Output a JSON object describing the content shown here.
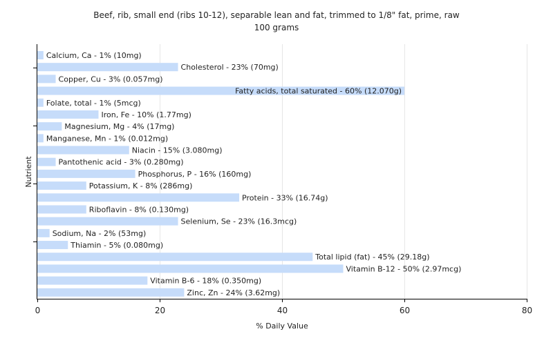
{
  "chart_data": {
    "type": "bar",
    "orientation": "horizontal",
    "title": "Beef, rib, small end (ribs 10-12), separable lean and fat, trimmed to 1/8\" fat, prime, raw",
    "subtitle": "100 grams",
    "xlabel": "% Daily Value",
    "ylabel": "Nutrient",
    "xlim": [
      0,
      80
    ],
    "xticks": [
      "0",
      "20",
      "40",
      "60",
      "80"
    ],
    "grid": true,
    "bar_color": "#c6dcfa",
    "categories": [
      "Calcium, Ca",
      "Cholesterol",
      "Copper, Cu",
      "Fatty acids, total saturated",
      "Folate, total",
      "Iron, Fe",
      "Magnesium, Mg",
      "Manganese, Mn",
      "Niacin",
      "Pantothenic acid",
      "Phosphorus, P",
      "Potassium, K",
      "Protein",
      "Riboflavin",
      "Selenium, Se",
      "Sodium, Na",
      "Thiamin",
      "Total lipid (fat)",
      "Vitamin B-12",
      "Vitamin B-6",
      "Zinc, Zn"
    ],
    "values": [
      1,
      23,
      3,
      60,
      1,
      10,
      4,
      1,
      15,
      3,
      16,
      8,
      33,
      8,
      23,
      2,
      5,
      45,
      50,
      18,
      24
    ],
    "labels": [
      "Calcium, Ca - 1% (10mg)",
      "Cholesterol - 23% (70mg)",
      "Copper, Cu - 3% (0.057mg)",
      "Fatty acids, total saturated - 60% (12.070g)",
      "Folate, total - 1% (5mcg)",
      "Iron, Fe - 10% (1.77mg)",
      "Magnesium, Mg - 4% (17mg)",
      "Manganese, Mn - 1% (0.012mg)",
      "Niacin - 15% (3.080mg)",
      "Pantothenic acid - 3% (0.280mg)",
      "Phosphorus, P - 16% (160mg)",
      "Potassium, K - 8% (286mg)",
      "Protein - 33% (16.74g)",
      "Riboflavin - 8% (0.130mg)",
      "Selenium, Se - 23% (16.3mcg)",
      "Sodium, Na - 2% (53mg)",
      "Thiamin - 5% (0.080mg)",
      "Total lipid (fat) - 45% (29.18g)",
      "Vitamin B-12 - 50% (2.97mcg)",
      "Vitamin B-6 - 18% (0.350mg)",
      "Zinc, Zn - 24% (3.62mg)"
    ]
  }
}
